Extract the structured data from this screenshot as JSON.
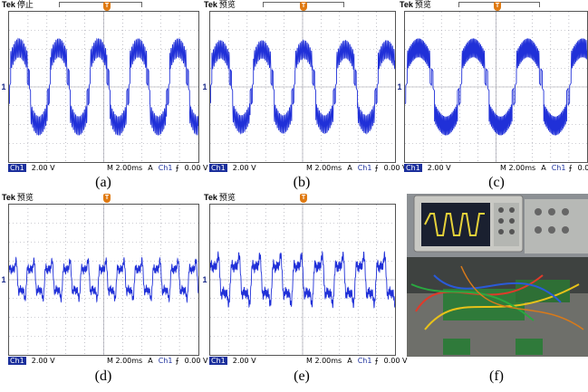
{
  "colors": {
    "trace": "#2030d8",
    "grid": "#9a9aa6",
    "status_bar": "#1b2f9c",
    "trigger": "#e07a12"
  },
  "scope_ui": {
    "brand": "Tek",
    "ch1_label": "Ch1",
    "volts_div": "2.00 V",
    "time_div": "M 2.00ms",
    "trig_mode": "A",
    "trig_channel": "Ch1",
    "trig_slope_icon": "rising-edge-icon",
    "trig_level": "0.00 V",
    "ground_marker": "1",
    "trigger_marker": "T"
  },
  "chart_data": [
    {
      "label": "(a)",
      "status": "停止",
      "type": "line",
      "xlabel": "",
      "ylabel": "",
      "period_ms": 4.2,
      "peak_v": 5.2,
      "waveform": "rectified-sine bursts with switching ripple, sharp zero-crossing spike",
      "grid": true
    },
    {
      "label": "(b)",
      "status": "预览",
      "type": "line",
      "xlabel": "",
      "ylabel": "",
      "period_ms": 4.5,
      "peak_v": 5.0,
      "waveform": "rectified-sine bursts with switching ripple",
      "grid": true
    },
    {
      "label": "(c)",
      "status": "预览",
      "type": "line",
      "xlabel": "",
      "ylabel": "",
      "period_ms": 6.0,
      "peak_v": 5.2,
      "waveform": "wide rectified-sine bursts with switching ripple",
      "grid": true
    },
    {
      "label": "(d)",
      "status": "预览",
      "type": "line",
      "xlabel": "",
      "ylabel": "",
      "period_ms": 1.9,
      "peak_v": 2.6,
      "waveform": "distorted low-amplitude multi-harmonic wave",
      "grid": true
    },
    {
      "label": "(e)",
      "status": "预览",
      "type": "line",
      "xlabel": "",
      "ylabel": "",
      "period_ms": 2.25,
      "peak_v": 3.3,
      "waveform": "distorted multi-harmonic wave with ripple",
      "grid": true
    }
  ],
  "photo": {
    "label": "(f)",
    "description_icon": "lab-setup-photo-icon"
  }
}
